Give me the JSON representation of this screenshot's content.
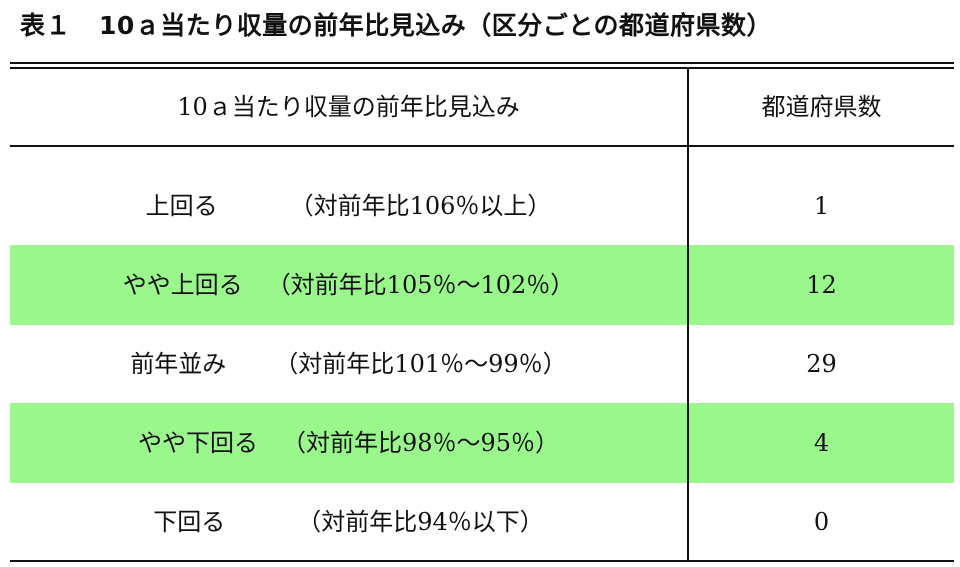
{
  "title": {
    "number": "表１",
    "text": "10ａ当たり収量の前年比見込み（区分ごとの都道府県数）"
  },
  "table": {
    "headers": {
      "category": "10ａ当たり収量の前年比見込み",
      "count": "都道府県数"
    },
    "rows": [
      {
        "category": "上回る",
        "range": "（対前年比106％以上）",
        "count": "1",
        "highlight": false
      },
      {
        "category": "やや上回る",
        "range": "（対前年比105％～102％）",
        "count": "12",
        "highlight": true
      },
      {
        "category": "前年並み",
        "range": "（対前年比101％～99％）",
        "count": "29",
        "highlight": false
      },
      {
        "category": "やや下回る",
        "range": "（対前年比98％～95％）",
        "count": "4",
        "highlight": true
      },
      {
        "category": "下回る",
        "range": "（対前年比94％以下）",
        "count": "0",
        "highlight": false
      }
    ]
  },
  "colors": {
    "highlight_row": "#99f78c",
    "rule": "#111111"
  }
}
